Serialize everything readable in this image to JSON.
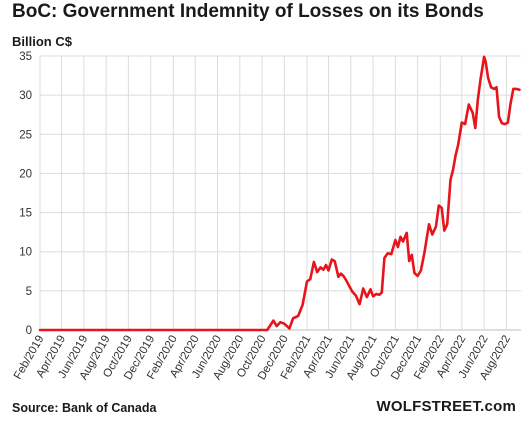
{
  "chart_data": {
    "type": "line",
    "title": "BoC: Government Indemnity of Losses on its Bonds",
    "ylabel": "Billion C$",
    "xlabel": "",
    "ylim": [
      0,
      35
    ],
    "yticks": [
      0,
      5,
      10,
      15,
      20,
      25,
      30,
      35
    ],
    "xlim": [
      "2019-02-01",
      "2022-09-10"
    ],
    "xticks": [
      {
        "label": "Feb/2019",
        "date": "2019-02-01"
      },
      {
        "label": "Apr/2019",
        "date": "2019-04-01"
      },
      {
        "label": "Jun/2019",
        "date": "2019-06-01"
      },
      {
        "label": "Aug/2019",
        "date": "2019-08-01"
      },
      {
        "label": "Oct/2019",
        "date": "2019-10-01"
      },
      {
        "label": "Dec/2019",
        "date": "2019-12-01"
      },
      {
        "label": "Feb/2020",
        "date": "2020-02-01"
      },
      {
        "label": "Apr/2020",
        "date": "2020-04-01"
      },
      {
        "label": "Jun/2020",
        "date": "2020-06-01"
      },
      {
        "label": "Aug/2020",
        "date": "2020-08-01"
      },
      {
        "label": "Oct/2020",
        "date": "2020-10-01"
      },
      {
        "label": "Dec/2020",
        "date": "2020-12-01"
      },
      {
        "label": "Feb/2021",
        "date": "2021-02-01"
      },
      {
        "label": "Apr/2021",
        "date": "2021-04-01"
      },
      {
        "label": "Jun/2021",
        "date": "2021-06-01"
      },
      {
        "label": "Aug/2021",
        "date": "2021-08-01"
      },
      {
        "label": "Oct/2021",
        "date": "2021-10-01"
      },
      {
        "label": "Dec/2021",
        "date": "2021-12-01"
      },
      {
        "label": "Feb/2022",
        "date": "2022-02-01"
      },
      {
        "label": "Apr/2022",
        "date": "2022-04-01"
      },
      {
        "label": "Jun/2022",
        "date": "2022-06-01"
      },
      {
        "label": "Aug/2022",
        "date": "2022-08-01"
      }
    ],
    "grid": true,
    "color": "#e8141b",
    "series": [
      {
        "x": [
          "2019-02-01",
          "2019-06-01",
          "2019-10-01",
          "2020-02-01",
          "2020-06-01",
          "2020-10-15",
          "2020-11-01",
          "2020-11-10",
          "2020-11-20",
          "2020-12-01",
          "2020-12-15",
          "2020-12-25",
          "2021-01-08",
          "2021-01-20",
          "2021-02-01",
          "2021-02-10",
          "2021-02-20",
          "2021-03-01",
          "2021-03-10",
          "2021-03-18",
          "2021-03-25",
          "2021-04-01",
          "2021-04-10",
          "2021-04-18",
          "2021-04-28",
          "2021-05-05",
          "2021-05-12",
          "2021-05-20",
          "2021-05-28",
          "2021-06-05",
          "2021-06-15",
          "2021-06-25",
          "2021-07-05",
          "2021-07-15",
          "2021-07-25",
          "2021-08-01",
          "2021-08-10",
          "2021-08-18",
          "2021-08-25",
          "2021-09-01",
          "2021-09-10",
          "2021-09-20",
          "2021-10-01",
          "2021-10-08",
          "2021-10-15",
          "2021-10-22",
          "2021-11-01",
          "2021-11-08",
          "2021-11-15",
          "2021-11-22",
          "2021-12-01",
          "2021-12-10",
          "2021-12-20",
          "2022-01-01",
          "2022-01-10",
          "2022-01-20",
          "2022-01-28",
          "2022-02-05",
          "2022-02-12",
          "2022-02-20",
          "2022-03-01",
          "2022-03-08",
          "2022-03-15",
          "2022-03-22",
          "2022-04-01",
          "2022-04-10",
          "2022-04-20",
          "2022-05-01",
          "2022-05-08",
          "2022-05-15",
          "2022-05-22",
          "2022-06-01",
          "2022-06-05",
          "2022-06-12",
          "2022-06-20",
          "2022-06-28",
          "2022-07-05",
          "2022-07-12",
          "2022-07-20",
          "2022-07-28",
          "2022-08-05",
          "2022-08-12",
          "2022-08-20",
          "2022-08-28",
          "2022-09-06"
        ],
        "y": [
          0,
          0,
          0,
          0,
          0,
          0,
          1.2,
          0.5,
          1.0,
          0.8,
          0.2,
          1.5,
          1.8,
          3.2,
          6.2,
          6.5,
          8.7,
          7.4,
          8.0,
          7.7,
          8.3,
          7.6,
          9.0,
          8.8,
          6.8,
          7.2,
          6.9,
          6.3,
          5.6,
          4.9,
          4.4,
          3.3,
          5.3,
          4.2,
          5.2,
          4.3,
          4.6,
          4.5,
          4.8,
          9.2,
          9.8,
          9.7,
          11.5,
          10.6,
          11.9,
          11.3,
          12.4,
          8.8,
          9.6,
          7.3,
          6.9,
          7.6,
          10.0,
          13.5,
          12.2,
          13.2,
          15.9,
          15.6,
          12.7,
          13.5,
          19.2,
          20.5,
          22.3,
          23.7,
          26.5,
          26.3,
          28.8,
          27.7,
          25.8,
          29.5,
          32.0,
          34.9,
          34.3,
          32.2,
          31.0,
          30.8,
          31.0,
          27.2,
          26.4,
          26.3,
          26.5,
          28.8,
          30.8,
          30.8,
          30.7
        ]
      }
    ]
  },
  "footer": {
    "source": "Source: Bank of Canada",
    "brand": "WOLFSTREET.com"
  }
}
